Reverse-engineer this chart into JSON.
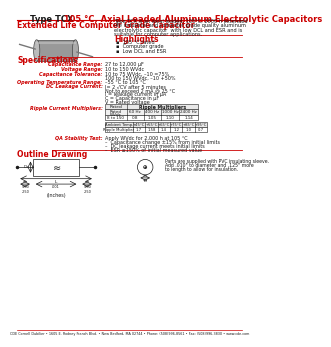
{
  "title_black": "Type TCX",
  "title_red": "  105 °C, Axial Leaded Aluminum Electrolytic Capacitors",
  "subtitle": "Extended Life Computer Grade Capacitor",
  "description": "Type TCX is an axial leaded, 105°C, 2000 h extended\nlife industrial and computer grade quality aluminum\nelectrolytic capacitor  with low DCL and ESR and is\nsuitable for computer applications.",
  "highlights_title": "Highlights",
  "highlights": [
    "105 °C rated",
    "Computer grade",
    "Low DCL and ESR"
  ],
  "specs_title": "Specifications",
  "spec_labels": [
    "Capacitance Range:",
    "Voltage Range:",
    "Capacitance Tolerance:",
    "Operating Temperature Range:",
    "DC Leakage Current:"
  ],
  "spec_values": [
    "27 to 12,000 μF",
    "10 to 150 WVdc",
    "10 to 75 WVdc, –10 =75%\n100 to 150 WVdc, –10 +50%",
    "–55 °C to 105 °C",
    "I= 2 √CV after 5 minutes\nNot to exceed 2 mA @ 25 °C\nI = leakage current in μA\nC = Capacitance in μF\nV = Rated voltage"
  ],
  "ripple_label": "Ripple Current Multipliers:",
  "ripple_col_header": "Ripple Multipliers",
  "ripple_table_headers": [
    "Rated\nWVdc",
    "60 Hz",
    "400 Hz",
    "1000 Hz",
    "2400 Hz"
  ],
  "ripple_table_row": [
    "8 to 150",
    "0.8",
    "1.05",
    "1.10",
    "1.14"
  ],
  "temp_table_headers": [
    "Ambient Temp.",
    "+45°C",
    "+55°C",
    "+65°C",
    "+75°C",
    "+85°C",
    "+95°C"
  ],
  "temp_table_row": [
    "Ripple Multiplier",
    "1.7",
    "1.58",
    "1.4",
    "1.2",
    "1.0",
    "0.7"
  ],
  "qa_label": "QA Stability Test:",
  "qa_line0": "Apply WVdc for 2,000 h at 105 °C",
  "qa_bullets": [
    "Capacitance change ±15% from initial limits",
    "DC leakage current meets initial limits",
    "ESR ≤150% of initial measured value"
  ],
  "outline_title": "Outline Drawing",
  "outline_note": "Parts are supplied with PVC insulating sleeve.\nAdd .010\" to diameter and .125\" more\nto length to allow for insulation.",
  "footer": "CDE Cornell Dubilier • 1605 E. Rodney French Blvd. • New Bedford, MA 02744 • Phone: (508)996-8561 • Fax: (508)996-3830 • www.cde.com",
  "red_color": "#cc0000",
  "dark_color": "#1a1a1a",
  "gray_color": "#666666",
  "bg_color": "#ffffff"
}
